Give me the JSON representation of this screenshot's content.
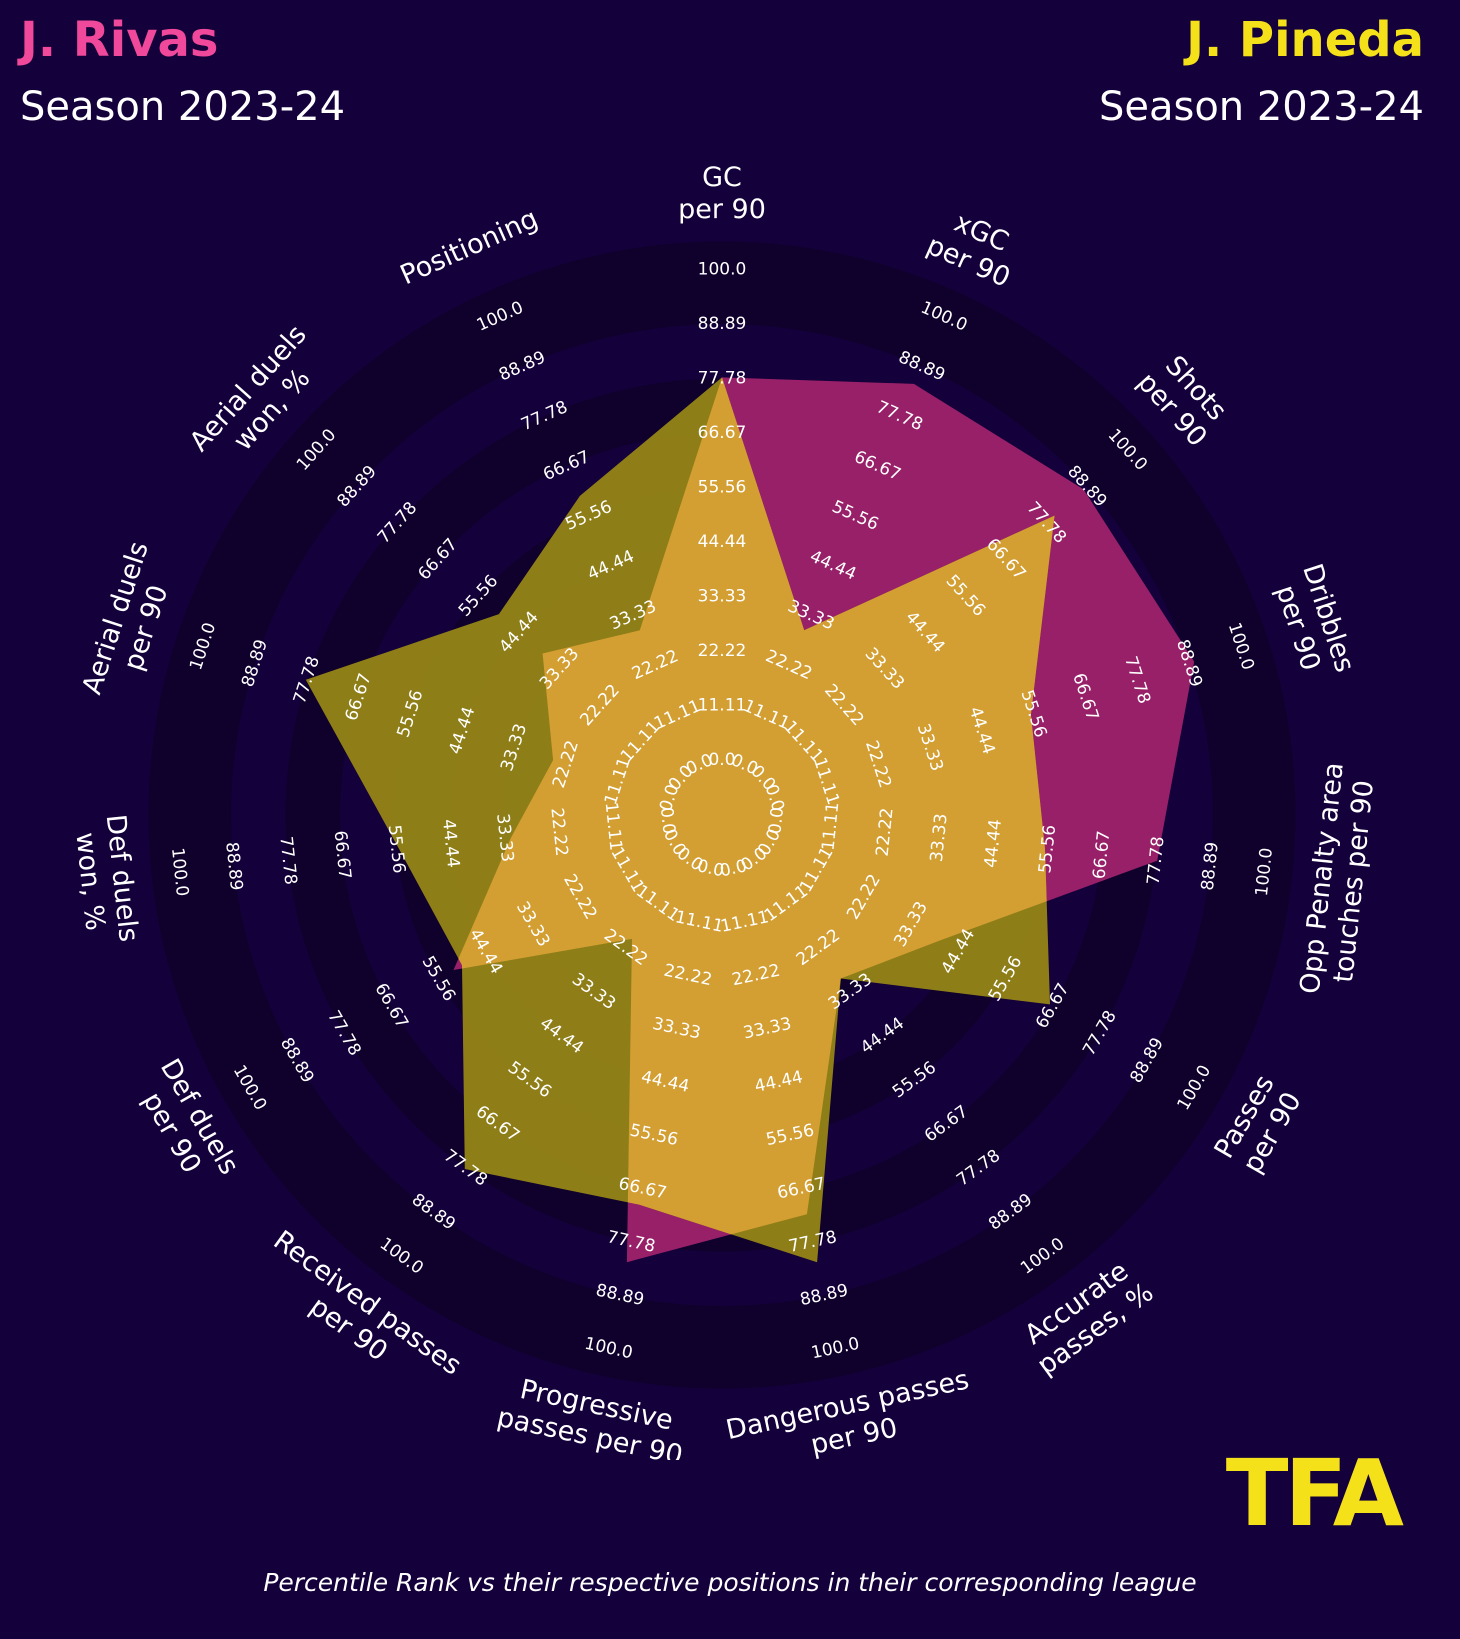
{
  "players": [
    {
      "name": "J. Rivas",
      "season": "Season 2023-24",
      "color": "#f0489a"
    },
    {
      "name": "J. Pineda",
      "season": "Season 2023-24",
      "color": "#f5e11a"
    }
  ],
  "footnote": "Percentile Rank vs their respective positions in their corresponding league",
  "logo_text": "TFA",
  "chart_data": {
    "type": "radar",
    "axes": [
      {
        "label": [
          "GC",
          "per 90"
        ]
      },
      {
        "label": [
          "xGC",
          "per 90"
        ]
      },
      {
        "label": [
          "Shots",
          "per 90"
        ]
      },
      {
        "label": [
          "Dribbles",
          "per 90"
        ]
      },
      {
        "label": [
          "Opp Penalty area",
          "touches per 90"
        ]
      },
      {
        "label": [
          "Passes",
          "per 90"
        ]
      },
      {
        "label": [
          "Accurate",
          "passes, %"
        ]
      },
      {
        "label": [
          "Dangerous passes",
          "per 90"
        ]
      },
      {
        "label": [
          "Progressive",
          "passes per 90"
        ]
      },
      {
        "label": [
          "Received passes",
          "per 90"
        ]
      },
      {
        "label": [
          "Def duels",
          "per 90"
        ]
      },
      {
        "label": [
          "Def duels",
          "won, %"
        ]
      },
      {
        "label": [
          "Aerial duels",
          "per 90"
        ]
      },
      {
        "label": [
          "Aerial duels",
          "won, %"
        ]
      },
      {
        "label": [
          "Positioning"
        ]
      }
    ],
    "ticks": [
      "0.0",
      "11.11",
      "22.22",
      "33.33",
      "44.44",
      "55.56",
      "66.67",
      "77.78",
      "88.89",
      "100.0"
    ],
    "range": [
      0,
      100
    ],
    "series": [
      {
        "name": "J. Rivas",
        "color": "#a3236e",
        "values": [
          78,
          85,
          88,
          90,
          78,
          40,
          30,
          72,
          82,
          20,
          52,
          32,
          25,
          38,
          30
        ]
      },
      {
        "name": "J. Pineda",
        "color": "#9c8c15",
        "values": [
          78,
          30,
          80,
          55,
          55,
          66,
          30,
          82,
          70,
          78,
          50,
          55,
          78,
          50,
          60
        ]
      }
    ]
  }
}
